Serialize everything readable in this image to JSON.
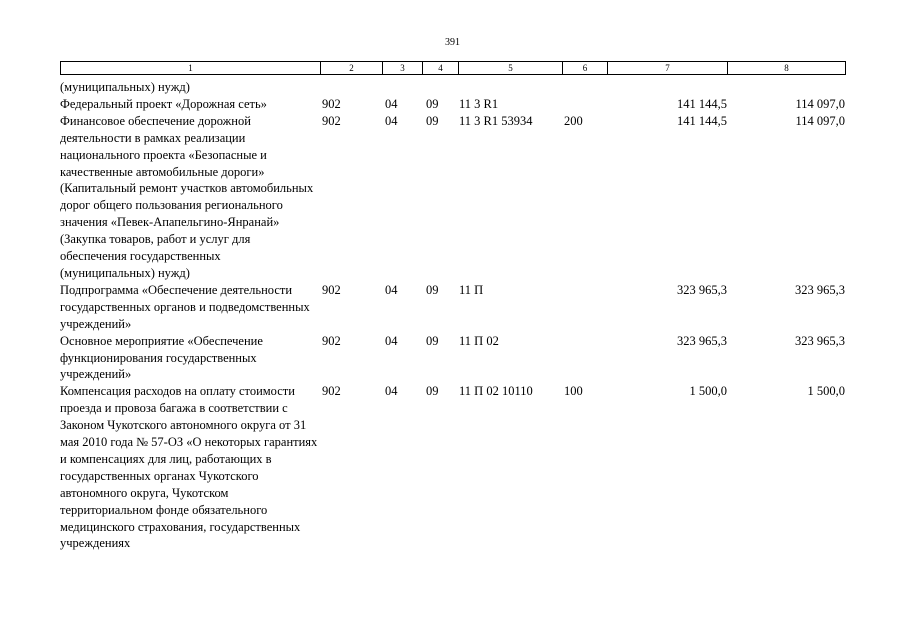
{
  "page_number": "391",
  "header": [
    "1",
    "2",
    "3",
    "4",
    "5",
    "6",
    "7",
    "8"
  ],
  "rows": [
    {
      "name": "(муниципальных) нужд)",
      "admin": "",
      "section": "",
      "subsection": "",
      "target": "",
      "expense": "",
      "v1": "",
      "v2": ""
    },
    {
      "name": "Федеральный проект «Дорожная сеть»",
      "admin": "902",
      "section": "04",
      "subsection": "09",
      "target": "11 3 R1",
      "expense": "",
      "v1": "141 144,5",
      "v2": "114 097,0"
    },
    {
      "name": "Финансовое обеспечение дорожной деятельности в рамках реализации национального проекта «Безопасные и качественные автомобильные дороги» (Капитальный ремонт участков автомобильных дорог общего пользования регионального значения «Певек-Апапельгино-Янранай» (Закупка товаров, работ и услуг для обеспечения государственных (муниципальных) нужд)",
      "admin": "902",
      "section": "04",
      "subsection": "09",
      "target": "11 3 R1 53934",
      "expense": "200",
      "v1": "141 144,5",
      "v2": "114 097,0"
    },
    {
      "name": "Подпрограмма «Обеспечение деятельности государственных органов и подведомственных учреждений»",
      "admin": "902",
      "section": "04",
      "subsection": "09",
      "target": "11 П",
      "expense": "",
      "v1": "323 965,3",
      "v2": "323 965,3"
    },
    {
      "name": "Основное мероприятие «Обеспечение функционирования государственных учреждений»",
      "admin": "902",
      "section": "04",
      "subsection": "09",
      "target": "11 П 02",
      "expense": "",
      "v1": "323 965,3",
      "v2": "323 965,3"
    },
    {
      "name": "Компенсация расходов на оплату стоимости проезда и провоза багажа в соответствии с Законом Чукотского автономного округа от 31 мая 2010 года № 57-ОЗ «О некоторых гарантиях и компенсациях для лиц, работающих в государственных органах Чукотского автономного округа, Чукотском территориальном фонде обязательного медицинского страхования, государственных учреждениях",
      "admin": "902",
      "section": "04",
      "subsection": "09",
      "target": "11 П 02 10110",
      "expense": "100",
      "v1": "1 500,0",
      "v2": "1 500,0"
    }
  ]
}
